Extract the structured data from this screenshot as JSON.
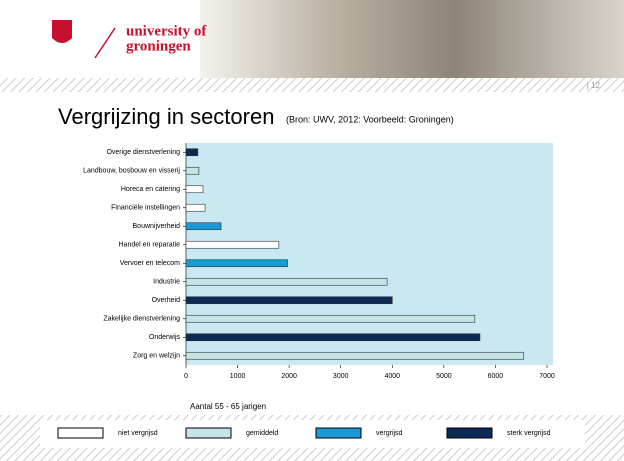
{
  "header": {
    "logo_line1": "university of",
    "logo_line2": "groningen",
    "slide_number": "| 12"
  },
  "chart_data": {
    "type": "barh",
    "title": "Vergrijzing in sectoren",
    "subtitle": "(Bron: UWV, 2012: Voorbeeld: Groningen)",
    "x_label": "Aantal 55 - 65 jarigen",
    "categories": [
      "Overige dienstverlening",
      "Landbouw, bosbouw en visserij",
      "Horeca en catering",
      "Financiële instellingen",
      "Bouwnijverheid",
      "Handel en reparatie",
      "Vervoer en telecom",
      "Industrie",
      "Overheid",
      "Zakelijke dienstverlening",
      "Onderwijs",
      "Zorg en welzijn"
    ],
    "values": [
      230,
      250,
      330,
      370,
      680,
      1800,
      1970,
      3900,
      4000,
      5600,
      5700,
      6550
    ],
    "bar_group": [
      3,
      1,
      0,
      0,
      2,
      0,
      2,
      1,
      3,
      1,
      3,
      1
    ],
    "legend": [
      {
        "name": "niet vergrijsd",
        "color": "#ffffff"
      },
      {
        "name": "gemiddeld",
        "color": "#c4e4e8"
      },
      {
        "name": "vergrijsd",
        "color": "#1c9ad6"
      },
      {
        "name": "sterk vergrijsd",
        "color": "#0b2a58"
      }
    ],
    "xlim": [
      0,
      7000
    ],
    "xticks": [
      0,
      1000,
      2000,
      3000,
      4000,
      5000,
      6000,
      7000
    ],
    "grid": false,
    "plot_background": "#c9e8f2"
  }
}
